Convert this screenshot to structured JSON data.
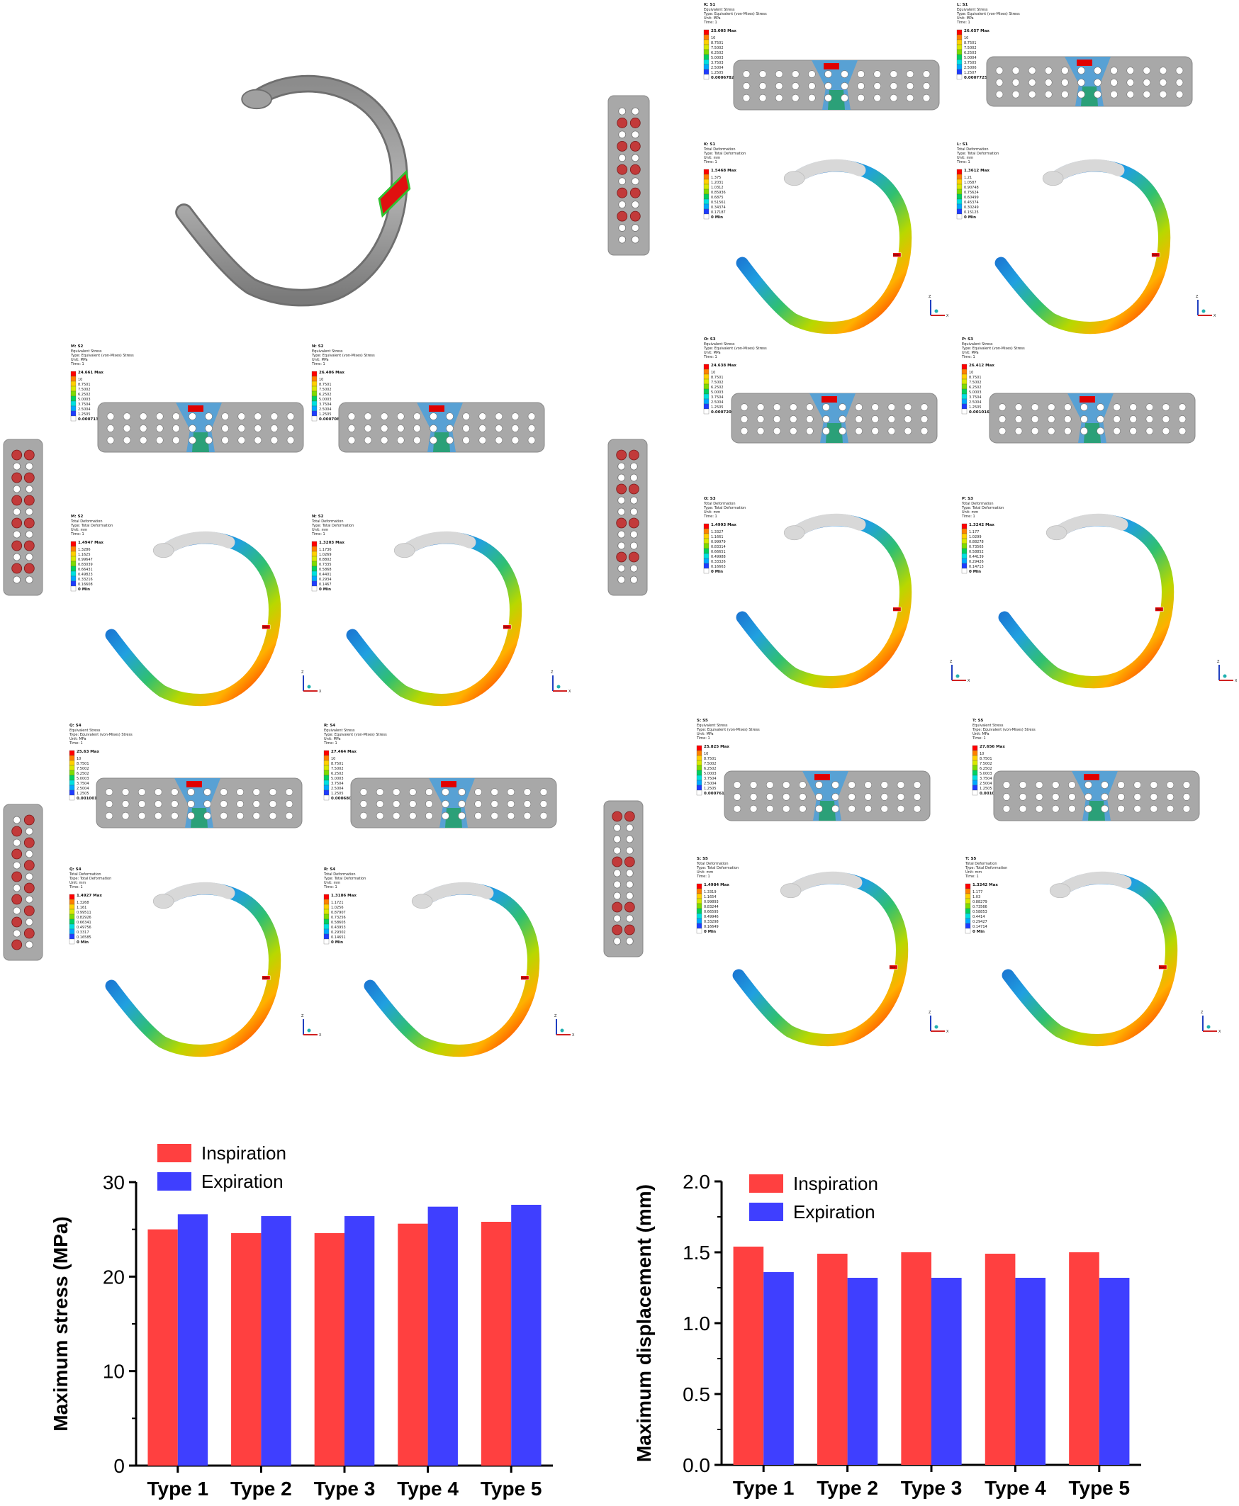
{
  "figure": {
    "colors": {
      "inspiration": "#FF4040",
      "expiration": "#3F3FFF",
      "bone": "#9a9a9a",
      "plate": "#a8a8a8",
      "ramp": [
        "#1e3cff",
        "#00a8ff",
        "#00e0e0",
        "#00d060",
        "#7ddc00",
        "#d8e800",
        "#ffd000",
        "#ff8000",
        "#ff0000"
      ]
    },
    "panels": [
      {
        "id": "type1",
        "stress": {
          "title": "K: S1",
          "lines": [
            "Equivalent Stress",
            "Type: Equivalent (von-Mises) Stress",
            "Unit: MPa",
            "Time: 1"
          ],
          "max": "25.005 Max",
          "ticks": [
            "10",
            "8.7501",
            "7.5002",
            "6.2502",
            "5.0003",
            "3.7503",
            "2.5004",
            "1.2505"
          ],
          "min": "0.00067828 Min"
        },
        "stress2": {
          "title": "L: S1",
          "lines": [
            "Equivalent Stress",
            "Type: Equivalent (von-Mises) Stress",
            "Unit: MPa",
            "Time: 1"
          ],
          "max": "26.657 Max",
          "ticks": [
            "10",
            "8.7501",
            "7.5002",
            "6.2503",
            "5.0004",
            "3.7505",
            "2.5006",
            "1.2507"
          ],
          "min": "0.00077259 Min"
        },
        "def": {
          "title": "K: S1",
          "lines": [
            "Total Deformation",
            "Type: Total Deformation",
            "Unit: mm",
            "Time: 1"
          ],
          "max": "1.5468 Max",
          "ticks": [
            "1.375",
            "1.2031",
            "1.0312",
            "0.85936",
            "0.6875",
            "0.51561",
            "0.34374",
            "0.17187"
          ],
          "min": "0 Min"
        },
        "def2": {
          "title": "L: S1",
          "lines": [
            "Total Deformation",
            "Type: Total Deformation",
            "Unit: mm",
            "Time: 1"
          ],
          "max": "1.3612 Max",
          "ticks": [
            "1.21",
            "1.0587",
            "0.90748",
            "0.75624",
            "0.60499",
            "0.45374",
            "0.30249",
            "0.15125"
          ],
          "min": "0 Min"
        }
      },
      {
        "id": "type2",
        "stress": {
          "title": "M: S2",
          "lines": [
            "Equivalent Stress",
            "Type: Equivalent (von-Mises) Stress",
            "Unit: MPa",
            "Time: 1"
          ],
          "max": "24.661 Max",
          "ticks": [
            "10",
            "8.7501",
            "7.5002",
            "6.2502",
            "5.0003",
            "3.7504",
            "2.5004",
            "1.2505"
          ],
          "min": "0.00071304 Min"
        },
        "stress2": {
          "title": "N: S2",
          "lines": [
            "Equivalent Stress",
            "Type: Equivalent (von-Mises) Stress",
            "Unit: MPa",
            "Time: 1"
          ],
          "max": "26.406 Max",
          "ticks": [
            "10",
            "8.7501",
            "7.5002",
            "6.2502",
            "5.0003",
            "3.7504",
            "2.5004",
            "1.2505"
          ],
          "min": "0.00070817 Min"
        },
        "def": {
          "title": "M: S2",
          "lines": [
            "Total Deformation",
            "Type: Total Deformation",
            "Unit: mm",
            "Time: 1"
          ],
          "max": "1.4947 Max",
          "ticks": [
            "1.3286",
            "1.1625",
            "0.99647",
            "0.83039",
            "0.66431",
            "0.49823",
            "0.33216",
            "0.16608"
          ],
          "min": "0 Min"
        },
        "def2": {
          "title": "N: S2",
          "lines": [
            "Total Deformation",
            "Type: Total Deformation",
            "Unit: mm",
            "Time: 1"
          ],
          "max": "1.3203 Max",
          "ticks": [
            "1.1736",
            "1.0269",
            "0.8802",
            "0.7335",
            "0.5868",
            "0.4401",
            "0.2934",
            "0.1467"
          ],
          "min": "0 Min"
        }
      },
      {
        "id": "type3",
        "stress": {
          "title": "O: S3",
          "lines": [
            "Equivalent Stress",
            "Type: Equivalent (von-Mises) Stress",
            "Unit: MPa",
            "Time: 1"
          ],
          "max": "24.638 Max",
          "ticks": [
            "10",
            "8.7501",
            "7.5002",
            "6.2502",
            "5.0003",
            "3.7504",
            "2.5004",
            "1.2505"
          ],
          "min": "0.00072007 Min"
        },
        "stress2": {
          "title": "P: S3",
          "lines": [
            "Equivalent Stress",
            "Type: Equivalent (von-Mises) Stress",
            "Unit: MPa",
            "Time: 1"
          ],
          "max": "26.412 Max",
          "ticks": [
            "10",
            "8.7501",
            "7.5002",
            "6.2502",
            "5.0003",
            "3.7504",
            "2.5004",
            "1.2505"
          ],
          "min": "0.00101691 Min"
        },
        "def": {
          "title": "O: S3",
          "lines": [
            "Total Deformation",
            "Type: Total Deformation",
            "Unit: mm",
            "Time: 1"
          ],
          "max": "1.4993 Max",
          "ticks": [
            "1.3327",
            "1.1661",
            "0.99979",
            "0.83314",
            "0.66651",
            "0.49988",
            "0.33326",
            "0.16663"
          ],
          "min": "0 Min"
        },
        "def2": {
          "title": "P: S3",
          "lines": [
            "Total Deformation",
            "Type: Total Deformation",
            "Unit: mm",
            "Time: 1"
          ],
          "max": "1.3242 Max",
          "ticks": [
            "1.177",
            "1.0299",
            "0.88278",
            "0.73565",
            "0.58852",
            "0.44139",
            "0.29426",
            "0.14713"
          ],
          "min": "0 Min"
        }
      },
      {
        "id": "type4",
        "stress": {
          "title": "Q: S4",
          "lines": [
            "Equivalent Stress",
            "Type: Equivalent (von-Mises) Stress",
            "Unit: MPa",
            "Time: 1"
          ],
          "max": "25.63 Max",
          "ticks": [
            "10",
            "8.7501",
            "7.5002",
            "6.2502",
            "5.0003",
            "3.7504",
            "2.5004",
            "1.2505"
          ],
          "min": "0.00100159 Min"
        },
        "stress2": {
          "title": "R: S4",
          "lines": [
            "Equivalent Stress",
            "Type: Equivalent (von-Mises) Stress",
            "Unit: MPa",
            "Time: 1"
          ],
          "max": "27.464 Max",
          "ticks": [
            "10",
            "8.7501",
            "7.5002",
            "6.2502",
            "5.0003",
            "3.7504",
            "2.5004",
            "1.2505"
          ],
          "min": "0.00068008 Min"
        },
        "def": {
          "title": "Q: S4",
          "lines": [
            "Total Deformation",
            "Type: Total Deformation",
            "Unit: mm",
            "Time: 1"
          ],
          "max": "1.4927 Max",
          "ticks": [
            "1.3268",
            "1.161",
            "0.99511",
            "0.82926",
            "0.66341",
            "0.49756",
            "0.3317",
            "0.16585"
          ],
          "min": "0 Min"
        },
        "def2": {
          "title": "R: S4",
          "lines": [
            "Total Deformation",
            "Type: Total Deformation",
            "Unit: mm",
            "Time: 1"
          ],
          "max": "1.3186 Max",
          "ticks": [
            "1.1721",
            "1.0256",
            "0.87907",
            "0.73256",
            "0.58605",
            "0.43953",
            "0.29302",
            "0.14651"
          ],
          "min": "0 Min"
        }
      },
      {
        "id": "type5",
        "stress": {
          "title": "S: S5",
          "lines": [
            "Equivalent Stress",
            "Type: Equivalent (von-Mises) Stress",
            "Unit: MPa",
            "Time: 1"
          ],
          "max": "25.825 Max",
          "ticks": [
            "10",
            "8.7501",
            "7.5002",
            "6.2502",
            "5.0003",
            "3.7504",
            "2.5004",
            "1.2505"
          ],
          "min": "0.00076142 Min"
        },
        "stress2": {
          "title": "T: S5",
          "lines": [
            "Equivalent Stress",
            "Type: Equivalent (von-Mises) Stress",
            "Unit: MPa",
            "Time: 1"
          ],
          "max": "27.656 Max",
          "ticks": [
            "10",
            "8.7501",
            "7.5002",
            "6.2502",
            "5.0003",
            "3.7504",
            "2.5004",
            "1.2505"
          ],
          "min": "0.00101091 Min"
        },
        "def": {
          "title": "S: S5",
          "lines": [
            "Total Deformation",
            "Type: Total Deformation",
            "Unit: mm",
            "Time: 1"
          ],
          "max": "1.4984 Max",
          "ticks": [
            "1.3319",
            "1.1654",
            "0.99893",
            "0.83244",
            "0.66595",
            "0.49946",
            "0.33298",
            "0.16649"
          ],
          "min": "0 Min"
        },
        "def2": {
          "title": "T: S5",
          "lines": [
            "Total Deformation",
            "Type: Total Deformation",
            "Unit: mm",
            "Time: 1"
          ],
          "max": "1.3242 Max",
          "ticks": [
            "1.177",
            "1.03",
            "0.88279",
            "0.73566",
            "0.58853",
            "0.4414",
            "0.29427",
            "0.14714"
          ],
          "min": "0 Min"
        }
      }
    ],
    "max_marker": "Max",
    "axis_z": "Z",
    "axis_x": "X"
  },
  "chart_data": [
    {
      "type": "bar",
      "categories": [
        "Type 1",
        "Type 2",
        "Type 3",
        "Type 4",
        "Type 5"
      ],
      "series": [
        {
          "name": "Inspiration",
          "values": [
            25.0,
            24.6,
            24.6,
            25.6,
            25.8
          ]
        },
        {
          "name": "Expiration",
          "values": [
            26.6,
            26.4,
            26.4,
            27.4,
            27.6
          ]
        }
      ],
      "title": "",
      "xlabel": "",
      "ylabel": "Maximum stress (MPa)",
      "ylim": [
        0,
        30
      ],
      "yticks": [
        "0",
        "10",
        "20",
        "30"
      ],
      "legend": "top-left"
    },
    {
      "type": "bar",
      "categories": [
        "Type 1",
        "Type 2",
        "Type 3",
        "Type 4",
        "Type 5"
      ],
      "series": [
        {
          "name": "Inspiration",
          "values": [
            1.54,
            1.49,
            1.5,
            1.49,
            1.5
          ]
        },
        {
          "name": "Expiration",
          "values": [
            1.36,
            1.32,
            1.32,
            1.32,
            1.32
          ]
        }
      ],
      "title": "",
      "xlabel": "",
      "ylabel": "Maximum displacement (mm)",
      "ylim": [
        0,
        2.0
      ],
      "yticks": [
        "0.0",
        "0.5",
        "1.0",
        "1.5",
        "2.0"
      ],
      "legend": "top-left"
    }
  ]
}
